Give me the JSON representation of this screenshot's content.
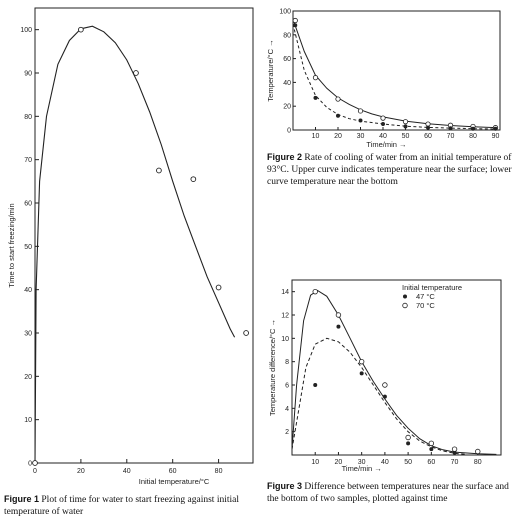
{
  "chart_data": [
    {
      "type": "scatter",
      "id": "fig1",
      "xlabel": "Initial temperature/°C",
      "ylabel": "Time to start freezing/min",
      "xlim": [
        0,
        95
      ],
      "ylim": [
        0,
        105
      ],
      "xticks": [
        0,
        20,
        40,
        60,
        80
      ],
      "yticks": [
        0,
        10,
        20,
        30,
        40,
        50,
        60,
        70,
        80,
        90,
        100
      ],
      "points": [
        {
          "x": 20,
          "y": 100
        },
        {
          "x": 44,
          "y": 90
        },
        {
          "x": 54,
          "y": 67.5
        },
        {
          "x": 69,
          "y": 65.5
        },
        {
          "x": 80,
          "y": 40.5
        },
        {
          "x": 92,
          "y": 30
        },
        {
          "x": 0,
          "y": 0
        }
      ],
      "curve": [
        {
          "x": 0,
          "y": 0
        },
        {
          "x": 0.5,
          "y": 40
        },
        {
          "x": 2,
          "y": 65
        },
        {
          "x": 5,
          "y": 80
        },
        {
          "x": 10,
          "y": 92
        },
        {
          "x": 15,
          "y": 97.5
        },
        {
          "x": 20,
          "y": 100.2
        },
        {
          "x": 25,
          "y": 100.8
        },
        {
          "x": 30,
          "y": 99.5
        },
        {
          "x": 35,
          "y": 97
        },
        {
          "x": 40,
          "y": 93
        },
        {
          "x": 45,
          "y": 87.5
        },
        {
          "x": 50,
          "y": 81
        },
        {
          "x": 55,
          "y": 73.5
        },
        {
          "x": 60,
          "y": 65
        },
        {
          "x": 65,
          "y": 57
        },
        {
          "x": 70,
          "y": 50
        },
        {
          "x": 75,
          "y": 43
        },
        {
          "x": 80,
          "y": 37
        },
        {
          "x": 85,
          "y": 31
        },
        {
          "x": 87,
          "y": 29
        }
      ],
      "caption_label": "Figure 1",
      "caption_text": "Plot of time for water to start freezing against initial temperature of water"
    },
    {
      "type": "line",
      "id": "fig2",
      "xlabel": "Time/min",
      "ylabel": "Temperature/°C",
      "xlim": [
        0,
        92
      ],
      "ylim": [
        0,
        100
      ],
      "xticks": [
        0,
        10,
        20,
        30,
        40,
        50,
        60,
        70,
        80,
        90
      ],
      "yticks": [
        0,
        20,
        40,
        60,
        80,
        100
      ],
      "series": [
        {
          "marker": "open",
          "points": [
            [
              1,
              92
            ],
            [
              10,
              44
            ],
            [
              20,
              26
            ],
            [
              30,
              16
            ],
            [
              40,
              10
            ],
            [
              50,
              7
            ],
            [
              60,
              5
            ],
            [
              70,
              4
            ],
            [
              80,
              3
            ],
            [
              90,
              2
            ]
          ],
          "curve": [
            [
              0,
              93
            ],
            [
              5,
              66
            ],
            [
              10,
              46
            ],
            [
              15,
              35
            ],
            [
              20,
              27
            ],
            [
              25,
              21.5
            ],
            [
              30,
              17
            ],
            [
              35,
              13.5
            ],
            [
              40,
              11
            ],
            [
              50,
              7.5
            ],
            [
              60,
              5.2
            ],
            [
              70,
              3.8
            ],
            [
              80,
              2.8
            ],
            [
              90,
              2
            ]
          ]
        },
        {
          "marker": "filled",
          "points": [
            [
              1,
              88
            ],
            [
              10,
              27
            ],
            [
              20,
              12
            ],
            [
              30,
              8
            ],
            [
              40,
              5
            ],
            [
              50,
              3
            ],
            [
              60,
              2
            ],
            [
              70,
              1.5
            ],
            [
              80,
              1
            ],
            [
              90,
              1
            ]
          ],
          "curve": [
            [
              0,
              89
            ],
            [
              5,
              50
            ],
            [
              10,
              29
            ],
            [
              15,
              19
            ],
            [
              20,
              13
            ],
            [
              25,
              9.5
            ],
            [
              30,
              7.5
            ],
            [
              40,
              5
            ],
            [
              50,
              3.2
            ],
            [
              60,
              2.2
            ],
            [
              70,
              1.6
            ],
            [
              80,
              1.1
            ],
            [
              90,
              0.8
            ]
          ]
        }
      ],
      "caption_label": "Figure 2",
      "caption_text": "Rate of cooling of water from an initial temperature of 93°C. Upper curve indicates temperature near the surface; lower curve temperature near the bottom"
    },
    {
      "type": "line",
      "id": "fig3",
      "xlabel": "Time/min",
      "ylabel": "Temperature difference/°C",
      "xlim": [
        0,
        90
      ],
      "ylim": [
        0,
        15
      ],
      "xticks": [
        0,
        10,
        20,
        30,
        40,
        50,
        60,
        70,
        80
      ],
      "yticks": [
        0,
        2,
        4,
        6,
        8,
        10,
        12,
        14
      ],
      "legend_title": "Initial temperature",
      "series": [
        {
          "name": "47 °C",
          "marker": "filled",
          "points": [
            [
              10,
              6
            ],
            [
              20,
              11
            ],
            [
              30,
              7
            ],
            [
              40,
              5
            ],
            [
              50,
              1
            ],
            [
              60,
              0.5
            ],
            [
              70,
              0.2
            ]
          ],
          "curve": [
            [
              0,
              0.5
            ],
            [
              3,
              4
            ],
            [
              6,
              7.5
            ],
            [
              10,
              9.5
            ],
            [
              15,
              10
            ],
            [
              20,
              9.7
            ],
            [
              25,
              8.8
            ],
            [
              30,
              7.5
            ],
            [
              35,
              6
            ],
            [
              40,
              4.5
            ],
            [
              45,
              3.1
            ],
            [
              50,
              2
            ],
            [
              55,
              1.2
            ],
            [
              60,
              0.7
            ],
            [
              65,
              0.35
            ],
            [
              70,
              0.15
            ],
            [
              75,
              0.05
            ]
          ]
        },
        {
          "name": "70 °C",
          "marker": "open",
          "points": [
            [
              10,
              14
            ],
            [
              20,
              12
            ],
            [
              30,
              8
            ],
            [
              40,
              6
            ],
            [
              50,
              1.5
            ],
            [
              60,
              1
            ],
            [
              70,
              0.5
            ],
            [
              80,
              0.3
            ]
          ],
          "curve": [
            [
              0,
              0.5
            ],
            [
              2,
              6
            ],
            [
              5,
              11.5
            ],
            [
              8,
              13.7
            ],
            [
              11,
              14.1
            ],
            [
              15,
              13.6
            ],
            [
              20,
              12
            ],
            [
              25,
              10
            ],
            [
              30,
              8
            ],
            [
              35,
              6.3
            ],
            [
              40,
              4.8
            ],
            [
              45,
              3.4
            ],
            [
              50,
              2.3
            ],
            [
              55,
              1.4
            ],
            [
              60,
              0.8
            ],
            [
              65,
              0.45
            ],
            [
              70,
              0.25
            ],
            [
              80,
              0.1
            ],
            [
              88,
              0.05
            ]
          ]
        }
      ],
      "caption_label": "Figure 3",
      "caption_text": "Difference between temperatures near the surface and the bottom of two samples, plotted against time"
    }
  ]
}
